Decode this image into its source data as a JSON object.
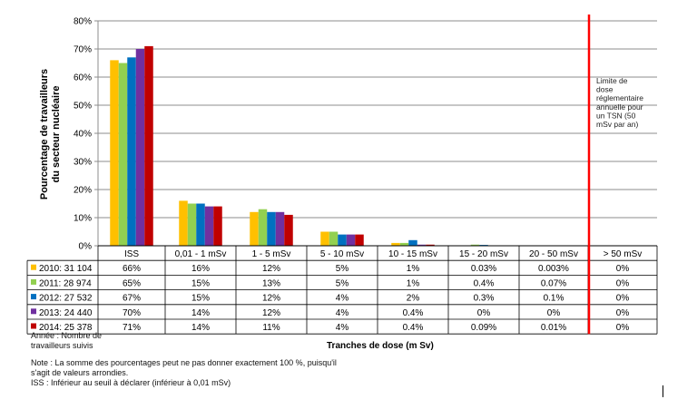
{
  "chart_data": {
    "type": "bar",
    "title": "",
    "ylabel": "Pourcentage de travailleurs du secteur nucléaire",
    "ylabel_lines": [
      "Pourcentage de travailleurs",
      "du secteur nucléaire"
    ],
    "xlabel": "Tranches de dose (m Sv)",
    "ylim": [
      0,
      80
    ],
    "yticks": [
      "0%",
      "10%",
      "20%",
      "30%",
      "40%",
      "50%",
      "60%",
      "70%",
      "80%"
    ],
    "grid": true,
    "legend": "table-left",
    "categories": [
      "ISS",
      "0,01 - 1 mSv",
      "1 - 5 mSv",
      "5 - 10 mSv",
      "10 - 15 mSv",
      "15 - 20 mSv",
      "20 - 50 mSv",
      "> 50 mSv"
    ],
    "series": [
      {
        "name": "2010: 31 104",
        "color": "#ffc000",
        "values": [
          66,
          16,
          12,
          5,
          1,
          0.03,
          0.003,
          0
        ],
        "labels": [
          "66%",
          "16%",
          "12%",
          "5%",
          "1%",
          "0.03%",
          "0.003%",
          "0%"
        ]
      },
      {
        "name": "2011: 28 974",
        "color": "#92d050",
        "values": [
          65,
          15,
          13,
          5,
          1,
          0.4,
          0.07,
          0
        ],
        "labels": [
          "65%",
          "15%",
          "13%",
          "5%",
          "1%",
          "0.4%",
          "0.07%",
          "0%"
        ]
      },
      {
        "name": "2012: 27 532",
        "color": "#0070c0",
        "values": [
          67,
          15,
          12,
          4,
          2,
          0.3,
          0.1,
          0
        ],
        "labels": [
          "67%",
          "15%",
          "12%",
          "4%",
          "2%",
          "0.3%",
          "0.1%",
          "0%"
        ]
      },
      {
        "name": "2013: 24 440",
        "color": "#7030a0",
        "values": [
          70,
          14,
          12,
          4,
          0.4,
          0,
          0,
          0
        ],
        "labels": [
          "70%",
          "14%",
          "12%",
          "4%",
          "0.4%",
          "0%",
          "0%",
          "0%"
        ]
      },
      {
        "name": "2014: 25 378",
        "color": "#c00000",
        "values": [
          71,
          14,
          11,
          4,
          0.4,
          0.09,
          0.01,
          0
        ],
        "labels": [
          "71%",
          "14%",
          "11%",
          "4%",
          "0.4%",
          "0.09%",
          "0.01%",
          "0%"
        ]
      }
    ],
    "limit_line": {
      "color": "#ff0000",
      "text": "Limite de dose réglementaire annuelle pour un TSN (50 mSv par an)",
      "text_lines": [
        "Limite de",
        "dose",
        "réglementaire",
        "annuelle pour",
        "un TSN (50",
        "mSv par an)"
      ]
    }
  },
  "legend_title": [
    "Année : Nombre de",
    "travailleurs suivis"
  ],
  "notes": [
    "Note : La somme des pourcentages peut ne pas donner exactement 100 %, puisqu'il",
    "s'agit de valeurs arrondies.",
    "ISS : Inférieur au seuil à déclarer (inférieur à 0,01 mSv)"
  ]
}
